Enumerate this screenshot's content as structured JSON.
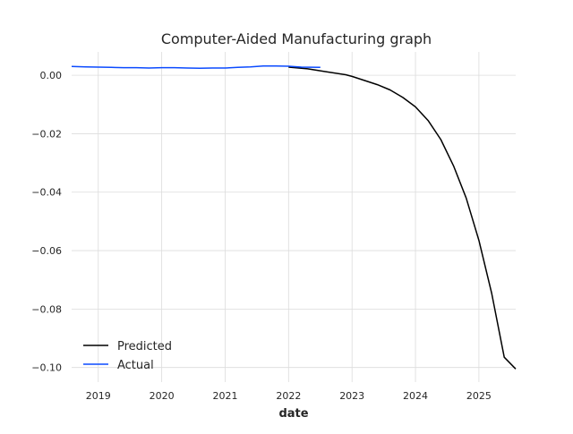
{
  "chart_data": {
    "type": "line",
    "title": "Computer-Aided Manufacturing graph",
    "xlabel": "date",
    "ylabel": "",
    "xlim": [
      2018.58,
      2025.58
    ],
    "ylim": [
      -0.105,
      0.008
    ],
    "x_ticks": [
      2019,
      2020,
      2021,
      2022,
      2023,
      2024,
      2025
    ],
    "x_tick_labels": [
      "2019",
      "2020",
      "2021",
      "2022",
      "2023",
      "2024",
      "2025"
    ],
    "y_ticks": [
      0.0,
      -0.02,
      -0.04,
      -0.06,
      -0.08,
      -0.1
    ],
    "y_tick_labels": [
      "0.00",
      "−0.02",
      "−0.04",
      "−0.06",
      "−0.08",
      "−0.10"
    ],
    "grid": true,
    "legend_position": "lower-left",
    "series": [
      {
        "name": "Predicted",
        "color": "#000000",
        "x": [
          2022.0,
          2022.3,
          2022.6,
          2022.9,
          2023.0,
          2023.2,
          2023.4,
          2023.6,
          2023.8,
          2024.0,
          2024.2,
          2024.4,
          2024.6,
          2024.8,
          2025.0,
          2025.2,
          2025.4,
          2025.58
        ],
        "y": [
          0.0028,
          0.0022,
          0.0012,
          0.0002,
          -0.0004,
          -0.0018,
          -0.0032,
          -0.005,
          -0.0076,
          -0.0108,
          -0.0155,
          -0.022,
          -0.031,
          -0.042,
          -0.0565,
          -0.0745,
          -0.0965,
          -0.1005
        ]
      },
      {
        "name": "Actual",
        "color": "#0a4aff",
        "x": [
          2018.58,
          2018.8,
          2019.0,
          2019.2,
          2019.4,
          2019.6,
          2019.8,
          2020.0,
          2020.2,
          2020.4,
          2020.6,
          2020.8,
          2021.0,
          2021.2,
          2021.4,
          2021.6,
          2021.8,
          2022.0,
          2022.2,
          2022.5
        ],
        "y": [
          0.003,
          0.0029,
          0.0028,
          0.0027,
          0.0026,
          0.0026,
          0.0025,
          0.0026,
          0.0026,
          0.0025,
          0.0024,
          0.0025,
          0.0025,
          0.0027,
          0.0029,
          0.0032,
          0.0032,
          0.0031,
          0.0028,
          0.0027
        ]
      }
    ]
  }
}
